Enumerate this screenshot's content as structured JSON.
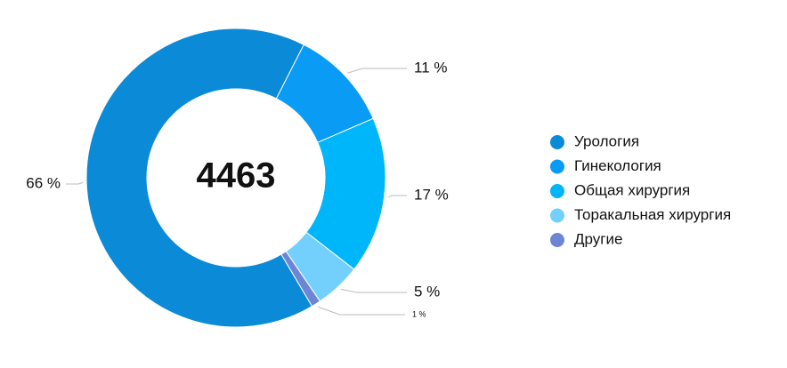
{
  "chart_data": {
    "type": "pie",
    "total": "4463",
    "categories": [
      "Урология",
      "Гинекология",
      "Общая хирургия",
      "Торакальная хирургия",
      "Другие"
    ],
    "values": [
      66,
      11,
      17,
      5,
      1
    ],
    "value_labels": [
      "66 %",
      "11 %",
      "17 %",
      "5 %",
      "1 %"
    ],
    "colors": [
      "#0b8ad8",
      "#0a9bf5",
      "#00b6fb",
      "#73d0fc",
      "#6c86d4"
    ]
  }
}
